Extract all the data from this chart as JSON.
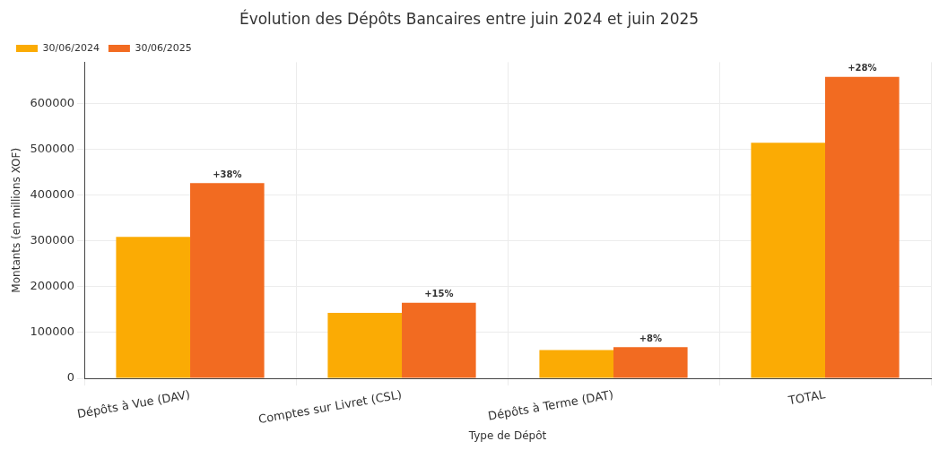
{
  "chart_data": {
    "type": "bar",
    "title": "Évolution des Dépôts Bancaires entre juin 2024 et juin 2025",
    "xlabel": "Type de Dépôt",
    "ylabel": "Montants (en millions XOF)",
    "categories": [
      "Dépôts à Vue (DAV)",
      "Comptes sur Livret (CSL)",
      "Dépôts à Terme (DAT)",
      "TOTAL"
    ],
    "series": [
      {
        "name": "30/06/2024",
        "color": "#fbab04",
        "values": [
          309000,
          143000,
          62000,
          514000
        ]
      },
      {
        "name": "30/06/2025",
        "color": "#f26b21",
        "values": [
          426000,
          165000,
          68000,
          658000
        ]
      }
    ],
    "ylim": [
      0,
      690000
    ],
    "yticks": [
      0,
      100000,
      200000,
      300000,
      400000,
      500000,
      600000
    ],
    "grid": true,
    "legend": "top left",
    "annotations": [
      "+38%",
      "+15%",
      "+8%",
      "+28%"
    ]
  }
}
